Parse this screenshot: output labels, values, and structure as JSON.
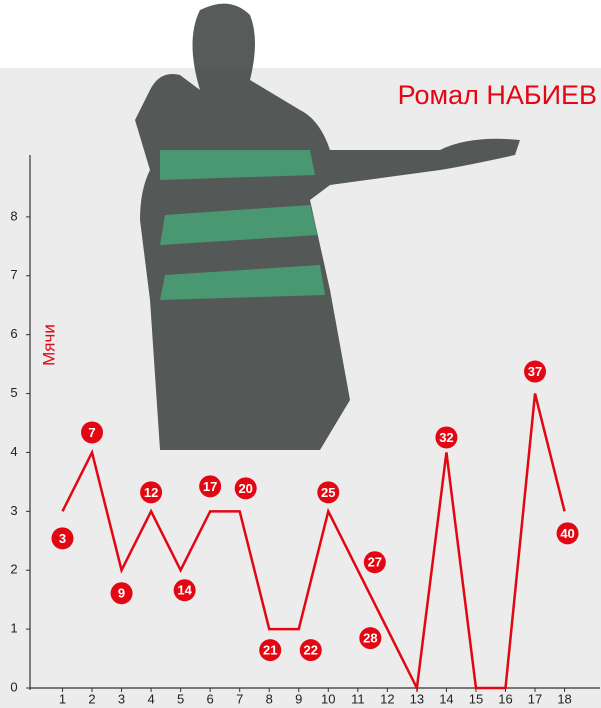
{
  "chart_data": {
    "type": "line",
    "title": "Ромал НАБИЕВ",
    "y_label": "Мячи",
    "x": [
      1,
      2,
      3,
      4,
      5,
      6,
      7,
      8,
      9,
      10,
      11,
      12,
      13,
      14,
      15,
      16,
      17,
      18
    ],
    "series": [
      {
        "color": "#e30613",
        "values": [
          3,
          4,
          2,
          3,
          2,
          3,
          3,
          1,
          1,
          3,
          2,
          1,
          0,
          4,
          0,
          0,
          5,
          3
        ],
        "totals": [
          3,
          7,
          9,
          12,
          14,
          17,
          20,
          21,
          22,
          25,
          27,
          28,
          null,
          32,
          null,
          null,
          37,
          40
        ]
      }
    ],
    "xlim": [
      -0.1,
      19.2
    ],
    "xticks": [
      1,
      2,
      3,
      4,
      5,
      6,
      7,
      8,
      9,
      10,
      11,
      12,
      13,
      14,
      15,
      16,
      17,
      18
    ],
    "ylim": [
      0,
      9
    ],
    "yticks": [
      0,
      1,
      2,
      3,
      4,
      5,
      6,
      7,
      8
    ]
  }
}
